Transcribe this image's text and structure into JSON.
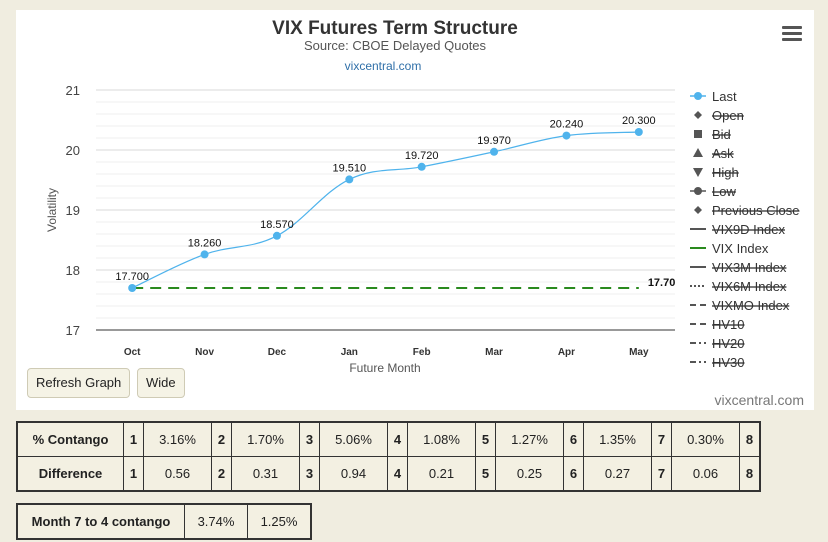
{
  "chart_data": {
    "type": "line",
    "title": "VIX Futures Term Structure",
    "subtitle": "Source: CBOE Delayed Quotes",
    "source_link": "vixcentral.com",
    "credit": "vixcentral.com",
    "xlabel": "Future Month",
    "ylabel": "Volatility",
    "categories": [
      "Oct",
      "Nov",
      "Dec",
      "Jan",
      "Feb",
      "Mar",
      "Apr",
      "May"
    ],
    "yticks": [
      "17",
      "18",
      "19",
      "20",
      "21"
    ],
    "ylim": [
      17,
      21
    ],
    "grid": true,
    "series": [
      {
        "name": "Last",
        "values": [
          17.7,
          18.26,
          18.57,
          19.51,
          19.72,
          19.97,
          20.24,
          20.3
        ],
        "labels": [
          "17.700",
          "18.260",
          "18.570",
          "19.510",
          "19.720",
          "19.970",
          "20.240",
          "20.300"
        ],
        "color": "#4fb3ec"
      },
      {
        "name": "VIX Index",
        "value": 17.7,
        "label": "17.70",
        "color": "#2a8a1e"
      }
    ],
    "legend_position": "right",
    "legend": [
      {
        "name": "Last",
        "symbol": "circle",
        "hidden": false
      },
      {
        "name": "Open",
        "symbol": "diamond",
        "hidden": true
      },
      {
        "name": "Bid",
        "symbol": "square",
        "hidden": true
      },
      {
        "name": "Ask",
        "symbol": "triangle",
        "hidden": true
      },
      {
        "name": "High",
        "symbol": "triangle-down",
        "hidden": true
      },
      {
        "name": "Low",
        "symbol": "circle",
        "hidden": true
      },
      {
        "name": "Previous Close",
        "symbol": "diamond",
        "hidden": true
      },
      {
        "name": "VIX9D Index",
        "symbol": "line",
        "hidden": true
      },
      {
        "name": "VIX Index",
        "symbol": "line",
        "hidden": false
      },
      {
        "name": "VIX3M Index",
        "symbol": "line",
        "hidden": true
      },
      {
        "name": "VIX6M Index",
        "symbol": "dotted",
        "hidden": true
      },
      {
        "name": "VIXMO Index",
        "symbol": "dashed",
        "hidden": true
      },
      {
        "name": "HV10",
        "symbol": "dashed",
        "hidden": true
      },
      {
        "name": "HV20",
        "symbol": "dash-dot",
        "hidden": true
      },
      {
        "name": "HV30",
        "symbol": "dash-dot",
        "hidden": true
      }
    ]
  },
  "buttons": {
    "refresh": "Refresh Graph",
    "wide": "Wide"
  },
  "contango_table": {
    "rows": [
      {
        "label": "% Contango",
        "cells": [
          [
            "1",
            "3.16%"
          ],
          [
            "2",
            "1.70%"
          ],
          [
            "3",
            "5.06%"
          ],
          [
            "4",
            "1.08%"
          ],
          [
            "5",
            "1.27%"
          ],
          [
            "6",
            "1.35%"
          ],
          [
            "7",
            "0.30%"
          ]
        ],
        "last": "8"
      },
      {
        "label": "Difference",
        "cells": [
          [
            "1",
            "0.56"
          ],
          [
            "2",
            "0.31"
          ],
          [
            "3",
            "0.94"
          ],
          [
            "4",
            "0.21"
          ],
          [
            "5",
            "0.25"
          ],
          [
            "6",
            "0.27"
          ],
          [
            "7",
            "0.06"
          ]
        ],
        "last": "8"
      }
    ]
  },
  "month7_table": {
    "label": "Month 7 to 4 contango",
    "v1": "3.74%",
    "v2": "1.25%"
  }
}
